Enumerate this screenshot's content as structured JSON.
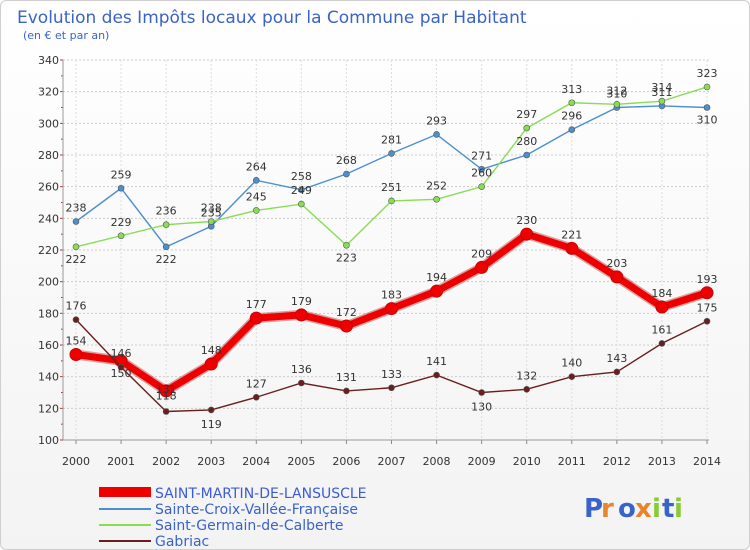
{
  "title": "Evolution des Impôts locaux pour la Commune par Habitant",
  "subtitle": "(en € et par an)",
  "logo": {
    "text": "Proxiti"
  },
  "chart_data": {
    "type": "line",
    "title": "Evolution des Impôts locaux pour la Commune par Habitant",
    "subtitle": "(en € et par an)",
    "xlabel": "",
    "ylabel": "",
    "x": [
      "2000",
      "2001",
      "2002",
      "2003",
      "2004",
      "2005",
      "2006",
      "2007",
      "2008",
      "2009",
      "2010",
      "2011",
      "2012",
      "2013",
      "2014"
    ],
    "ylim": [
      100,
      340
    ],
    "yticks": [
      100,
      120,
      140,
      160,
      180,
      200,
      220,
      240,
      260,
      280,
      300,
      320,
      340
    ],
    "grid": true,
    "legend_position": "bottom-left",
    "series": [
      {
        "name": "SAINT-MARTIN-DE-LANSUSCLE",
        "color": "#ee0000",
        "values": [
          154,
          150,
          131,
          148,
          177,
          179,
          172,
          183,
          194,
          209,
          230,
          221,
          203,
          184,
          193
        ]
      },
      {
        "name": "Sainte-Croix-Vallée-Française",
        "color": "#4a8fd0",
        "values": [
          238,
          259,
          222,
          235,
          264,
          258,
          268,
          281,
          293,
          271,
          280,
          296,
          310,
          311,
          310
        ]
      },
      {
        "name": "Saint-Germain-de-Calberte",
        "color": "#88dd55",
        "values": [
          222,
          229,
          236,
          238,
          245,
          249,
          223,
          251,
          252,
          260,
          297,
          313,
          312,
          314,
          323
        ]
      },
      {
        "name": "Gabriac",
        "color": "#6b1e1e",
        "values": [
          176,
          146,
          118,
          119,
          127,
          136,
          131,
          133,
          141,
          130,
          132,
          140,
          143,
          161,
          175
        ]
      }
    ]
  }
}
